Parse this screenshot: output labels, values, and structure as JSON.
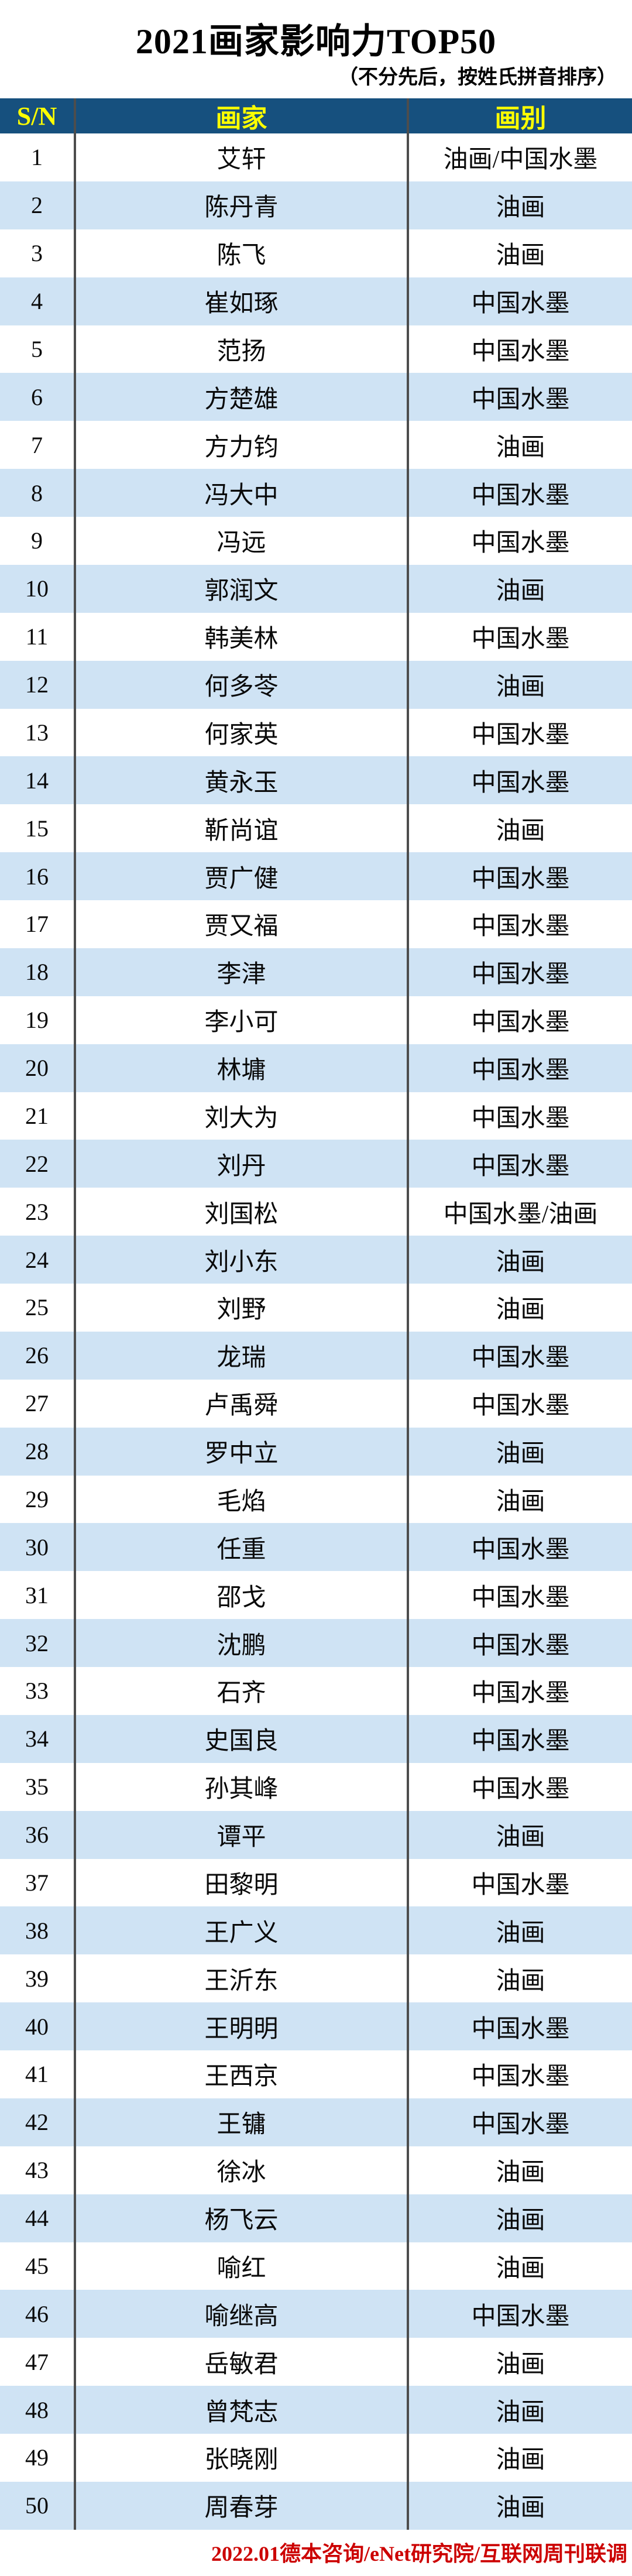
{
  "title": "2021画家影响力TOP50",
  "subtitle": "（不分先后，按姓氏拼音排序）",
  "footer": "2022.01德本咨询/eNet研究院/互联网周刊联调",
  "colors": {
    "header_bg": "#16507E",
    "header_text": "#FFFF00",
    "row_alt_bg": "#CFE3F4",
    "divider": "#4D4D4D",
    "footer_text": "#CC0000"
  },
  "table": {
    "headers": [
      "S/N",
      "画家",
      "画别"
    ],
    "rows": [
      {
        "sn": "1",
        "name": "艾轩",
        "category": "油画/中国水墨"
      },
      {
        "sn": "2",
        "name": "陈丹青",
        "category": "油画"
      },
      {
        "sn": "3",
        "name": "陈飞",
        "category": "油画"
      },
      {
        "sn": "4",
        "name": "崔如琢",
        "category": "中国水墨"
      },
      {
        "sn": "5",
        "name": "范扬",
        "category": "中国水墨"
      },
      {
        "sn": "6",
        "name": "方楚雄",
        "category": "中国水墨"
      },
      {
        "sn": "7",
        "name": "方力钧",
        "category": "油画"
      },
      {
        "sn": "8",
        "name": "冯大中",
        "category": "中国水墨"
      },
      {
        "sn": "9",
        "name": "冯远",
        "category": "中国水墨"
      },
      {
        "sn": "10",
        "name": "郭润文",
        "category": "油画"
      },
      {
        "sn": "11",
        "name": "韩美林",
        "category": "中国水墨"
      },
      {
        "sn": "12",
        "name": "何多苓",
        "category": "油画"
      },
      {
        "sn": "13",
        "name": "何家英",
        "category": "中国水墨"
      },
      {
        "sn": "14",
        "name": "黄永玉",
        "category": "中国水墨"
      },
      {
        "sn": "15",
        "name": "靳尚谊",
        "category": "油画"
      },
      {
        "sn": "16",
        "name": "贾广健",
        "category": "中国水墨"
      },
      {
        "sn": "17",
        "name": "贾又福",
        "category": "中国水墨"
      },
      {
        "sn": "18",
        "name": "李津",
        "category": "中国水墨"
      },
      {
        "sn": "19",
        "name": "李小可",
        "category": "中国水墨"
      },
      {
        "sn": "20",
        "name": "林墉",
        "category": "中国水墨"
      },
      {
        "sn": "21",
        "name": "刘大为",
        "category": "中国水墨"
      },
      {
        "sn": "22",
        "name": "刘丹",
        "category": "中国水墨"
      },
      {
        "sn": "23",
        "name": "刘国松",
        "category": "中国水墨/油画"
      },
      {
        "sn": "24",
        "name": "刘小东",
        "category": "油画"
      },
      {
        "sn": "25",
        "name": "刘野",
        "category": "油画"
      },
      {
        "sn": "26",
        "name": "龙瑞",
        "category": "中国水墨"
      },
      {
        "sn": "27",
        "name": "卢禹舜",
        "category": "中国水墨"
      },
      {
        "sn": "28",
        "name": "罗中立",
        "category": "油画"
      },
      {
        "sn": "29",
        "name": "毛焰",
        "category": "油画"
      },
      {
        "sn": "30",
        "name": "任重",
        "category": "中国水墨"
      },
      {
        "sn": "31",
        "name": "邵戈",
        "category": "中国水墨"
      },
      {
        "sn": "32",
        "name": "沈鹏",
        "category": "中国水墨"
      },
      {
        "sn": "33",
        "name": "石齐",
        "category": "中国水墨"
      },
      {
        "sn": "34",
        "name": "史国良",
        "category": "中国水墨"
      },
      {
        "sn": "35",
        "name": "孙其峰",
        "category": "中国水墨"
      },
      {
        "sn": "36",
        "name": "谭平",
        "category": "油画"
      },
      {
        "sn": "37",
        "name": "田黎明",
        "category": "中国水墨"
      },
      {
        "sn": "38",
        "name": "王广义",
        "category": "油画"
      },
      {
        "sn": "39",
        "name": "王沂东",
        "category": "油画"
      },
      {
        "sn": "40",
        "name": "王明明",
        "category": "中国水墨"
      },
      {
        "sn": "41",
        "name": "王西京",
        "category": "中国水墨"
      },
      {
        "sn": "42",
        "name": "王镛",
        "category": "中国水墨"
      },
      {
        "sn": "43",
        "name": "徐冰",
        "category": "油画"
      },
      {
        "sn": "44",
        "name": "杨飞云",
        "category": "油画"
      },
      {
        "sn": "45",
        "name": "喻红",
        "category": "油画"
      },
      {
        "sn": "46",
        "name": "喻继高",
        "category": "中国水墨"
      },
      {
        "sn": "47",
        "name": "岳敏君",
        "category": "油画"
      },
      {
        "sn": "48",
        "name": "曾梵志",
        "category": "油画"
      },
      {
        "sn": "49",
        "name": "张晓刚",
        "category": "油画"
      },
      {
        "sn": "50",
        "name": "周春芽",
        "category": "油画"
      }
    ]
  }
}
